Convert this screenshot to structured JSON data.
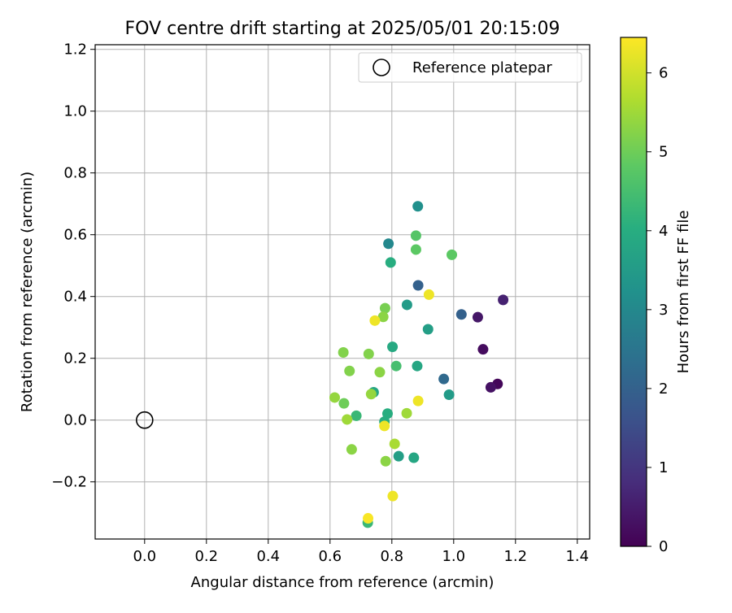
{
  "chart_data": {
    "type": "scatter",
    "title": "FOV centre drift starting at 2025/05/01 20:15:09",
    "xlabel": "Angular distance from reference (arcmin)",
    "ylabel": "Rotation from reference (arcmin)",
    "xlim": [
      -0.16,
      1.44
    ],
    "ylim": [
      -0.385,
      1.215
    ],
    "xticks": [
      0.0,
      0.2,
      0.4,
      0.6,
      0.8,
      1.0,
      1.2,
      1.4
    ],
    "xtick_labels": [
      "0.0",
      "0.2",
      "0.4",
      "0.6",
      "0.8",
      "1.0",
      "1.2",
      "1.4"
    ],
    "yticks": [
      -0.2,
      0.0,
      0.2,
      0.4,
      0.6,
      0.8,
      1.0,
      1.2
    ],
    "ytick_labels": [
      "−0.2",
      "0.0",
      "0.2",
      "0.4",
      "0.6",
      "0.8",
      "1.0",
      "1.2"
    ],
    "grid": true,
    "legend": {
      "placement": "top-right",
      "entries": [
        "Reference platepar"
      ]
    },
    "reference_point": {
      "x": 0.0,
      "y": 0.0,
      "marker": "open-circle"
    },
    "colorbar": {
      "label": "Hours from first FF file",
      "colormap": "viridis",
      "range": [
        0,
        6.45
      ],
      "ticks": [
        0,
        1,
        2,
        3,
        4,
        5,
        6
      ],
      "tick_labels": [
        "0",
        "1",
        "2",
        "3",
        "4",
        "5",
        "6"
      ]
    },
    "points": [
      {
        "x": 1.142,
        "y": 0.117,
        "c": 0.1
      },
      {
        "x": 1.12,
        "y": 0.106,
        "c": 0.3
      },
      {
        "x": 1.095,
        "y": 0.229,
        "c": 0.2
      },
      {
        "x": 1.078,
        "y": 0.333,
        "c": 0.4
      },
      {
        "x": 1.16,
        "y": 0.389,
        "c": 0.6
      },
      {
        "x": 1.025,
        "y": 0.342,
        "c": 2.0
      },
      {
        "x": 0.885,
        "y": 0.436,
        "c": 2.0
      },
      {
        "x": 0.968,
        "y": 0.133,
        "c": 2.2
      },
      {
        "x": 0.789,
        "y": 0.571,
        "c": 3.0
      },
      {
        "x": 0.884,
        "y": 0.692,
        "c": 3.2
      },
      {
        "x": 0.849,
        "y": 0.373,
        "c": 3.5
      },
      {
        "x": 0.985,
        "y": 0.082,
        "c": 3.5
      },
      {
        "x": 0.917,
        "y": 0.294,
        "c": 3.6
      },
      {
        "x": 0.882,
        "y": 0.175,
        "c": 3.8
      },
      {
        "x": 0.871,
        "y": -0.122,
        "c": 3.8
      },
      {
        "x": 0.822,
        "y": -0.117,
        "c": 3.6
      },
      {
        "x": 0.802,
        "y": 0.237,
        "c": 3.9
      },
      {
        "x": 0.796,
        "y": 0.51,
        "c": 4.0
      },
      {
        "x": 0.741,
        "y": 0.09,
        "c": 3.8
      },
      {
        "x": 0.786,
        "y": 0.021,
        "c": 4.0
      },
      {
        "x": 0.685,
        "y": 0.014,
        "c": 4.3
      },
      {
        "x": 0.776,
        "y": -0.005,
        "c": 4.0
      },
      {
        "x": 0.722,
        "y": -0.332,
        "c": 4.3
      },
      {
        "x": 0.814,
        "y": 0.175,
        "c": 4.5
      },
      {
        "x": 0.878,
        "y": 0.552,
        "c": 4.8
      },
      {
        "x": 0.878,
        "y": 0.597,
        "c": 4.7
      },
      {
        "x": 0.994,
        "y": 0.535,
        "c": 4.8
      },
      {
        "x": 0.645,
        "y": 0.054,
        "c": 5.0
      },
      {
        "x": 0.778,
        "y": 0.362,
        "c": 5.1
      },
      {
        "x": 0.772,
        "y": 0.334,
        "c": 5.3
      },
      {
        "x": 0.643,
        "y": 0.219,
        "c": 5.2
      },
      {
        "x": 0.725,
        "y": 0.214,
        "c": 5.2
      },
      {
        "x": 0.663,
        "y": 0.159,
        "c": 5.2
      },
      {
        "x": 0.761,
        "y": 0.155,
        "c": 5.3
      },
      {
        "x": 0.615,
        "y": 0.073,
        "c": 5.4
      },
      {
        "x": 0.733,
        "y": 0.084,
        "c": 5.4
      },
      {
        "x": 0.655,
        "y": 0.002,
        "c": 5.5
      },
      {
        "x": 0.848,
        "y": 0.022,
        "c": 5.5
      },
      {
        "x": 0.67,
        "y": -0.095,
        "c": 5.3
      },
      {
        "x": 0.78,
        "y": -0.133,
        "c": 5.3
      },
      {
        "x": 0.809,
        "y": -0.077,
        "c": 5.6
      },
      {
        "x": 0.92,
        "y": 0.406,
        "c": 6.3
      },
      {
        "x": 0.745,
        "y": 0.322,
        "c": 6.3
      },
      {
        "x": 0.885,
        "y": 0.062,
        "c": 6.3
      },
      {
        "x": 0.776,
        "y": -0.019,
        "c": 6.3
      },
      {
        "x": 0.803,
        "y": -0.246,
        "c": 6.3
      },
      {
        "x": 0.723,
        "y": -0.318,
        "c": 6.4
      }
    ]
  }
}
